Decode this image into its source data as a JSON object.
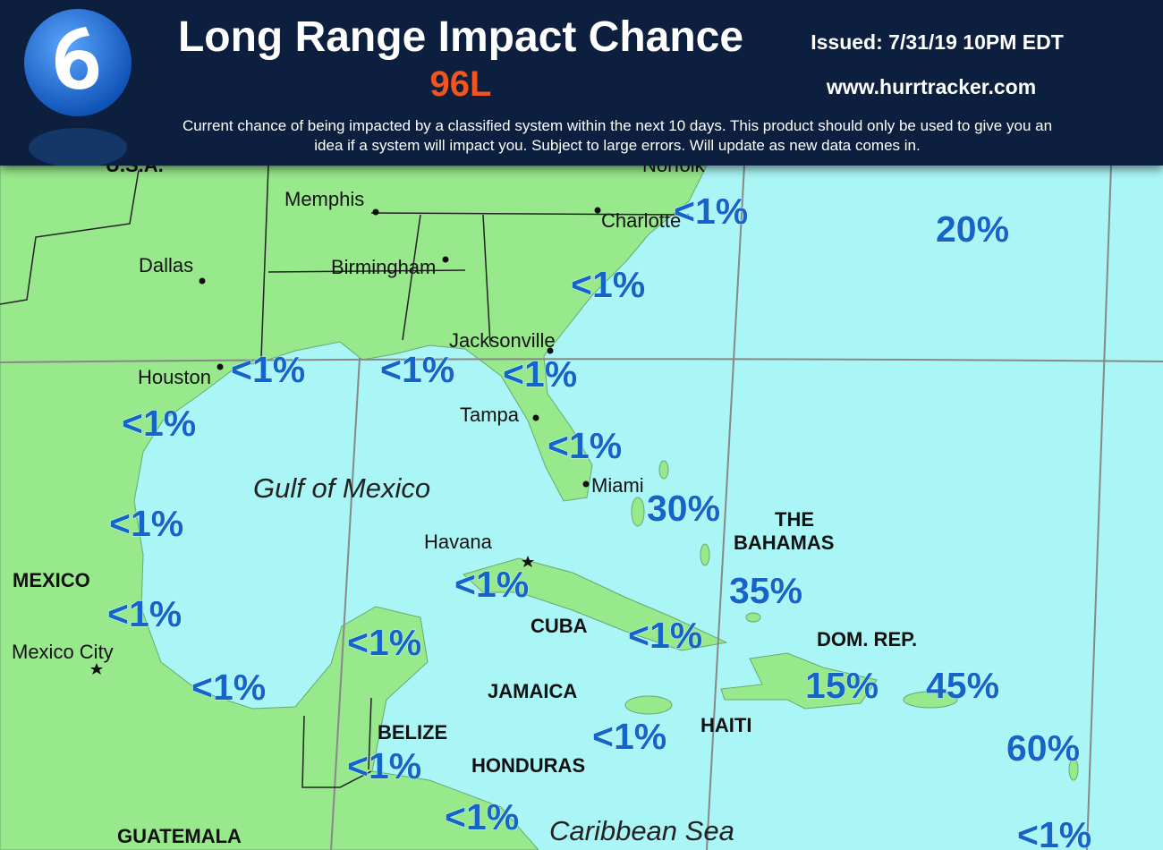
{
  "header": {
    "title": "Long Range Impact Chance",
    "storm": "96L",
    "issued": "Issued: 7/31/19 10PM EDT",
    "website": "www.hurrtracker.com",
    "description": "Current chance of being impacted by a classified system within the next 10 days. This product should only be used to give you an idea if a system will impact you. Subject to large errors. Will update as new data comes in."
  },
  "map": {
    "places": [
      "U.S.A.",
      "Norfolk",
      "Memphis",
      "Charlotte",
      "Dallas",
      "Birmingham",
      "Jacksonville",
      "Houston",
      "Tampa",
      "Miami",
      "Havana",
      "THE",
      "BAHAMAS",
      "MEXICO",
      "CUBA",
      "DOM. REP.",
      "Mexico City",
      "JAMAICA",
      "HAITI",
      "BELIZE",
      "HONDURAS",
      "GUATEMALA"
    ],
    "water_labels": [
      "Gulf of Mexico",
      "Caribbean Sea"
    ],
    "chances": [
      "<1%",
      "20%",
      "<1%",
      "<1%",
      "<1%",
      "<1%",
      "<1%",
      "<1%",
      "30%",
      "<1%",
      "<1%",
      "35%",
      "<1%",
      "<1%",
      "<1%",
      "<1%",
      "15%",
      "45%",
      "<1%",
      "60%",
      "<1%",
      "<1%",
      "<1%"
    ]
  }
}
